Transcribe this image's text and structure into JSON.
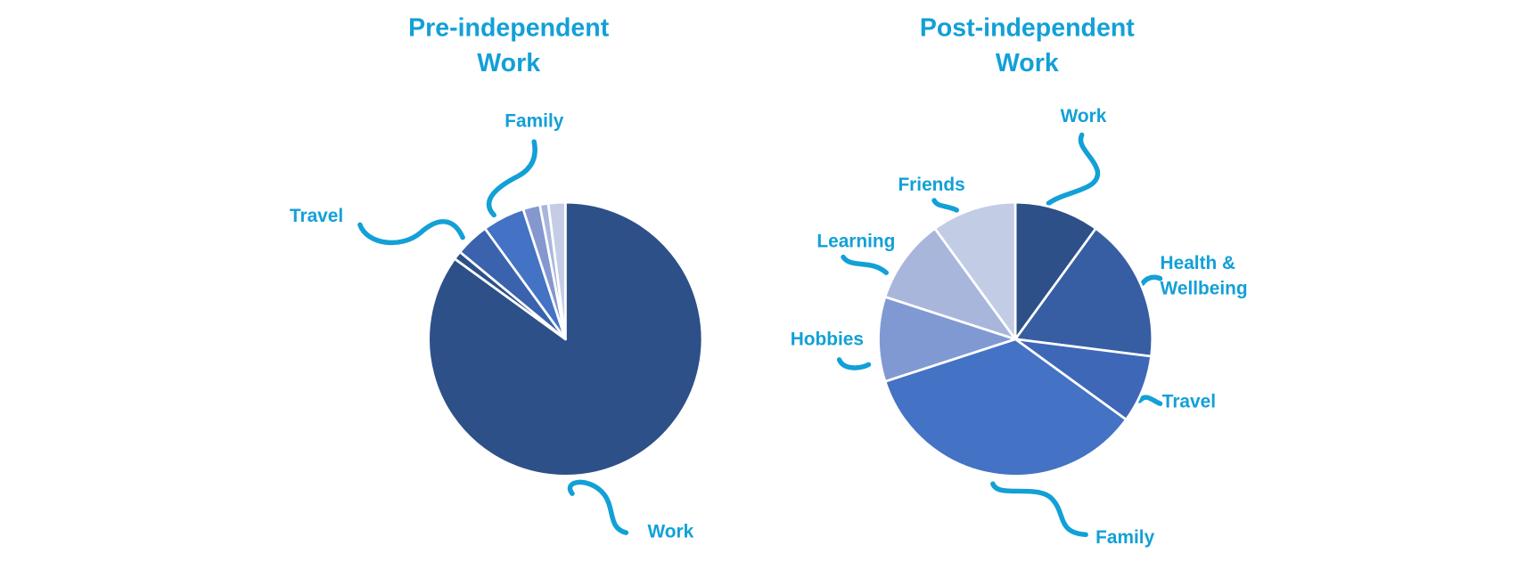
{
  "chart_data": [
    {
      "type": "pie",
      "title": "Pre-independent Work",
      "categories": [
        "Work",
        null,
        "Travel",
        "Family",
        null,
        null,
        null
      ],
      "values": [
        85,
        1,
        4,
        5,
        2,
        1,
        2
      ],
      "colors": [
        "#2e5088",
        "#2e5088",
        "#3a62ad",
        "#4472c4",
        "#8497cf",
        "#a9b6dc",
        "#c5cde6"
      ]
    },
    {
      "type": "pie",
      "title": "Post-independent Work",
      "categories": [
        "Work",
        "Health & Wellbeing",
        "Travel",
        "Family",
        "Hobbies",
        "Learning",
        "Friends"
      ],
      "values": [
        10,
        17,
        8,
        35,
        10,
        10,
        10
      ],
      "colors": [
        "#2e5088",
        "#375ea3",
        "#3e67b8",
        "#4472c4",
        "#8099d3",
        "#a9b6dc",
        "#c3cce5"
      ]
    }
  ]
}
